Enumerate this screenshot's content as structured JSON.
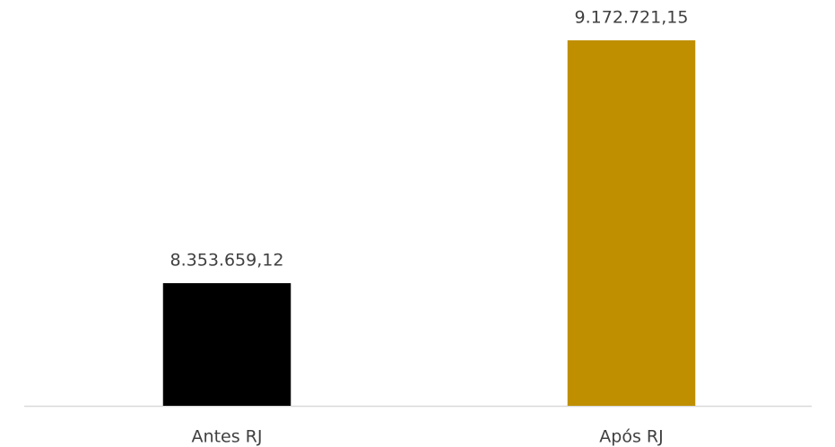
{
  "chart_data": {
    "type": "bar",
    "categories": [
      "Antes RJ",
      "Após RJ"
    ],
    "values": [
      8353659.12,
      9172721.15
    ],
    "value_labels": [
      "8.353.659,12",
      "9.172.721,15"
    ],
    "colors": [
      "#000000",
      "#bf8f00"
    ],
    "ylim": [
      7940000,
      9200000
    ]
  }
}
